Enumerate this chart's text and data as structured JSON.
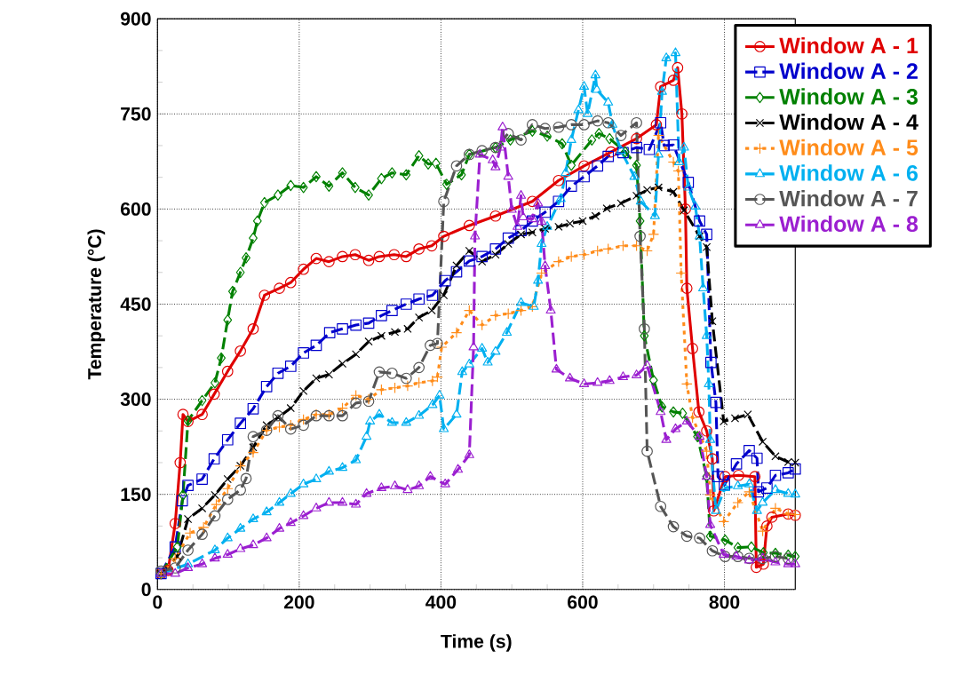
{
  "chart_data": {
    "type": "line",
    "xlabel": "Time (s)",
    "ylabel": "Temperature (°C)",
    "xlim": [
      0,
      900
    ],
    "ylim": [
      0,
      900
    ],
    "xticks": [
      0,
      200,
      400,
      600,
      800
    ],
    "yticks": [
      0,
      150,
      300,
      450,
      600,
      750,
      900
    ],
    "grid": true,
    "legend": "top right",
    "series": [
      {
        "name": "Window A - 1",
        "color": "#e00000",
        "marker": "circle",
        "line_style": "solid",
        "x": [
          5,
          15,
          25,
          32,
          36,
          43,
          63,
          80,
          99,
          117,
          135,
          151,
          172,
          188,
          206,
          224,
          242,
          261,
          279,
          298,
          313,
          334,
          351,
          369,
          387,
          404,
          440,
          477,
          529,
          566,
          602,
          640,
          676,
          704,
          710,
          728,
          734,
          740,
          745,
          747,
          755,
          764,
          775,
          783,
          785,
          801,
          820,
          843,
          845,
          855,
          860,
          867,
          890,
          900
        ],
        "values": [
          25,
          30,
          104,
          200,
          276,
          265,
          276,
          308,
          344,
          376,
          411,
          464,
          475,
          484,
          505,
          522,
          517,
          525,
          528,
          519,
          525,
          528,
          525,
          537,
          542,
          557,
          574,
          589,
          612,
          645,
          668,
          690,
          711,
          733,
          793,
          803,
          823,
          750,
          600,
          475,
          380,
          280,
          250,
          206,
          124,
          178,
          180,
          178,
          35,
          40,
          100,
          114,
          119,
          117
        ]
      },
      {
        "name": "Window A - 2",
        "color": "#0000cc",
        "marker": "square",
        "line_style": "dashed",
        "x": [
          5,
          25,
          35,
          43,
          63,
          80,
          99,
          117,
          135,
          154,
          170,
          188,
          206,
          224,
          243,
          261,
          280,
          298,
          316,
          331,
          351,
          369,
          388,
          406,
          422,
          440,
          458,
          477,
          495,
          513,
          529,
          547,
          566,
          584,
          602,
          621,
          636,
          657,
          676,
          694,
          710,
          715,
          728,
          749,
          765,
          775,
          781,
          788,
          791,
          800,
          817,
          835,
          846,
          848,
          860,
          872,
          890,
          900
        ],
        "values": [
          25,
          67,
          140,
          164,
          174,
          206,
          236,
          262,
          285,
          320,
          341,
          352,
          373,
          385,
          405,
          411,
          417,
          420,
          432,
          440,
          450,
          458,
          464,
          487,
          501,
          518,
          525,
          537,
          554,
          566,
          581,
          595,
          612,
          636,
          651,
          668,
          683,
          689,
          697,
          694,
          736,
          700,
          701,
          642,
          581,
          560,
          358,
          295,
          178,
          165,
          198,
          219,
          207,
          154,
          160,
          180,
          184,
          190
        ]
      },
      {
        "name": "Window A - 3",
        "color": "#008000",
        "marker": "diamond",
        "line_style": "dashed",
        "x": [
          5,
          28,
          36,
          43,
          63,
          81,
          90,
          99,
          106,
          117,
          125,
          135,
          141,
          151,
          170,
          188,
          206,
          224,
          242,
          261,
          279,
          298,
          316,
          331,
          351,
          369,
          382,
          393,
          408,
          429,
          440,
          477,
          498,
          529,
          550,
          571,
          584,
          613,
          623,
          638,
          660,
          676,
          681,
          687,
          700,
          712,
          728,
          741,
          762,
          775,
          780,
          801,
          819,
          838,
          855,
          872,
          890,
          900
        ],
        "values": [
          25,
          67,
          149,
          266,
          298,
          326,
          365,
          425,
          470,
          500,
          523,
          554,
          581,
          610,
          622,
          637,
          634,
          651,
          636,
          657,
          634,
          622,
          648,
          657,
          654,
          684,
          671,
          672,
          639,
          654,
          686,
          697,
          709,
          723,
          715,
          703,
          669,
          709,
          719,
          711,
          690,
          669,
          581,
          400,
          330,
          288,
          280,
          278,
          241,
          178,
          84,
          78,
          66,
          67,
          58,
          57,
          54,
          52
        ]
      },
      {
        "name": "Window A - 4",
        "color": "#000000",
        "marker": "cross",
        "line_style": "dashed",
        "x": [
          5,
          28,
          43,
          63,
          81,
          99,
          117,
          135,
          154,
          170,
          188,
          206,
          224,
          242,
          261,
          280,
          298,
          316,
          335,
          353,
          369,
          387,
          404,
          422,
          440,
          458,
          477,
          495,
          513,
          529,
          547,
          566,
          582,
          600,
          618,
          634,
          654,
          676,
          691,
          707,
          728,
          743,
          765,
          775,
          783,
          799,
          815,
          833,
          854,
          872,
          890,
          900
        ],
        "values": [
          25,
          52,
          111,
          128,
          149,
          174,
          195,
          224,
          259,
          271,
          286,
          313,
          333,
          339,
          356,
          371,
          391,
          400,
          406,
          411,
          429,
          440,
          464,
          511,
          534,
          517,
          528,
          545,
          560,
          563,
          569,
          572,
          577,
          581,
          589,
          601,
          609,
          621,
          630,
          634,
          627,
          598,
          557,
          540,
          423,
          265,
          270,
          276,
          233,
          210,
          201,
          200
        ]
      },
      {
        "name": "Window A - 5",
        "color": "#ff8c1a",
        "marker": "plus",
        "line_style": "dotted",
        "x": [
          5,
          25,
          46,
          65,
          83,
          99,
          117,
          135,
          154,
          172,
          188,
          206,
          224,
          242,
          261,
          280,
          298,
          316,
          335,
          353,
          369,
          388,
          395,
          401,
          422,
          440,
          458,
          477,
          495,
          513,
          529,
          542,
          566,
          584,
          602,
          621,
          636,
          657,
          676,
          691,
          700,
          707,
          728,
          735,
          739,
          747,
          755,
          775,
          780,
          799,
          819,
          835,
          854,
          872,
          890,
          900
        ],
        "values": [
          25,
          49,
          89,
          98,
          134,
          159,
          195,
          216,
          251,
          256,
          259,
          268,
          276,
          276,
          286,
          306,
          300,
          315,
          318,
          321,
          326,
          329,
          335,
          382,
          405,
          440,
          417,
          432,
          435,
          440,
          446,
          499,
          517,
          525,
          528,
          534,
          537,
          542,
          542,
          534,
          560,
          716,
          674,
          660,
          499,
          324,
          271,
          218,
          149,
          107,
          137,
          154,
          92,
          128,
          119,
          118
        ]
      },
      {
        "name": "Window A - 6",
        "color": "#00b0f0",
        "marker": "triangle",
        "line_style": "dashed",
        "x": [
          5,
          43,
          81,
          99,
          117,
          135,
          154,
          172,
          188,
          206,
          224,
          242,
          261,
          280,
          295,
          300,
          313,
          331,
          351,
          369,
          388,
          398,
          404,
          422,
          430,
          440,
          458,
          466,
          477,
          493,
          513,
          531,
          537,
          542,
          550,
          569,
          576,
          584,
          594,
          602,
          607,
          618,
          620,
          636,
          642,
          654,
          673,
          682,
          702,
          707,
          712,
          718,
          731,
          736,
          743,
          749,
          759,
          765,
          770,
          775,
          778,
          780,
          788,
          801,
          819,
          835,
          846,
          854,
          872,
          890,
          900
        ],
        "values": [
          25,
          40,
          62,
          81,
          96,
          111,
          122,
          137,
          151,
          166,
          174,
          186,
          192,
          204,
          241,
          265,
          276,
          263,
          263,
          274,
          291,
          306,
          253,
          276,
          343,
          355,
          380,
          358,
          375,
          405,
          452,
          446,
          487,
          545,
          572,
          616,
          657,
          709,
          756,
          793,
          750,
          811,
          788,
          768,
          733,
          692,
          651,
          612,
          589,
          686,
          785,
          838,
          846,
          674,
          697,
          634,
          604,
          557,
          475,
          400,
          324,
          236,
          124,
          160,
          163,
          166,
          124,
          137,
          157,
          151,
          150
        ]
      },
      {
        "name": "Window A - 7",
        "color": "#555555",
        "marker": "circle",
        "line_style": "dashed",
        "x": [
          5,
          25,
          43,
          63,
          81,
          99,
          117,
          125,
          135,
          154,
          170,
          188,
          206,
          224,
          242,
          261,
          280,
          298,
          313,
          331,
          351,
          369,
          385,
          395,
          404,
          422,
          440,
          458,
          477,
          495,
          513,
          529,
          547,
          566,
          584,
          602,
          621,
          636,
          654,
          676,
          681,
          687,
          691,
          710,
          728,
          747,
          765,
          783,
          801,
          819,
          835,
          854,
          872,
          890
        ],
        "values": [
          29,
          34,
          62,
          87,
          116,
          142,
          157,
          175,
          241,
          251,
          274,
          253,
          259,
          274,
          274,
          274,
          294,
          297,
          343,
          341,
          333,
          350,
          385,
          388,
          612,
          668,
          686,
          692,
          697,
          719,
          709,
          733,
          727,
          729,
          733,
          733,
          739,
          736,
          716,
          736,
          557,
          411,
          218,
          131,
          99,
          84,
          81,
          61,
          52,
          52,
          49,
          49,
          52,
          49
        ]
      },
      {
        "name": "Window A - 8",
        "color": "#9b1fd0",
        "marker": "triangle",
        "line_style": "dashed",
        "x": [
          5,
          25,
          43,
          63,
          81,
          99,
          117,
          135,
          154,
          172,
          188,
          206,
          224,
          242,
          261,
          280,
          295,
          316,
          335,
          353,
          369,
          385,
          406,
          424,
          440,
          446,
          448,
          455,
          473,
          477,
          484,
          487,
          495,
          500,
          508,
          513,
          516,
          529,
          537,
          542,
          547,
          555,
          563,
          582,
          602,
          621,
          638,
          657,
          676,
          691,
          710,
          718,
          731,
          747,
          765,
          775,
          780,
          799,
          817,
          835,
          854,
          872,
          890,
          900
        ],
        "values": [
          25,
          25,
          34,
          40,
          49,
          55,
          64,
          70,
          81,
          96,
          105,
          116,
          128,
          137,
          137,
          134,
          151,
          160,
          163,
          157,
          163,
          178,
          166,
          189,
          212,
          382,
          557,
          686,
          677,
          666,
          697,
          729,
          651,
          599,
          572,
          621,
          587,
          584,
          609,
          580,
          510,
          440,
          347,
          333,
          324,
          326,
          329,
          335,
          338,
          353,
          280,
          236,
          253,
          265,
          241,
          178,
          102,
          55,
          52,
          46,
          49,
          43,
          40,
          40
        ]
      }
    ]
  }
}
